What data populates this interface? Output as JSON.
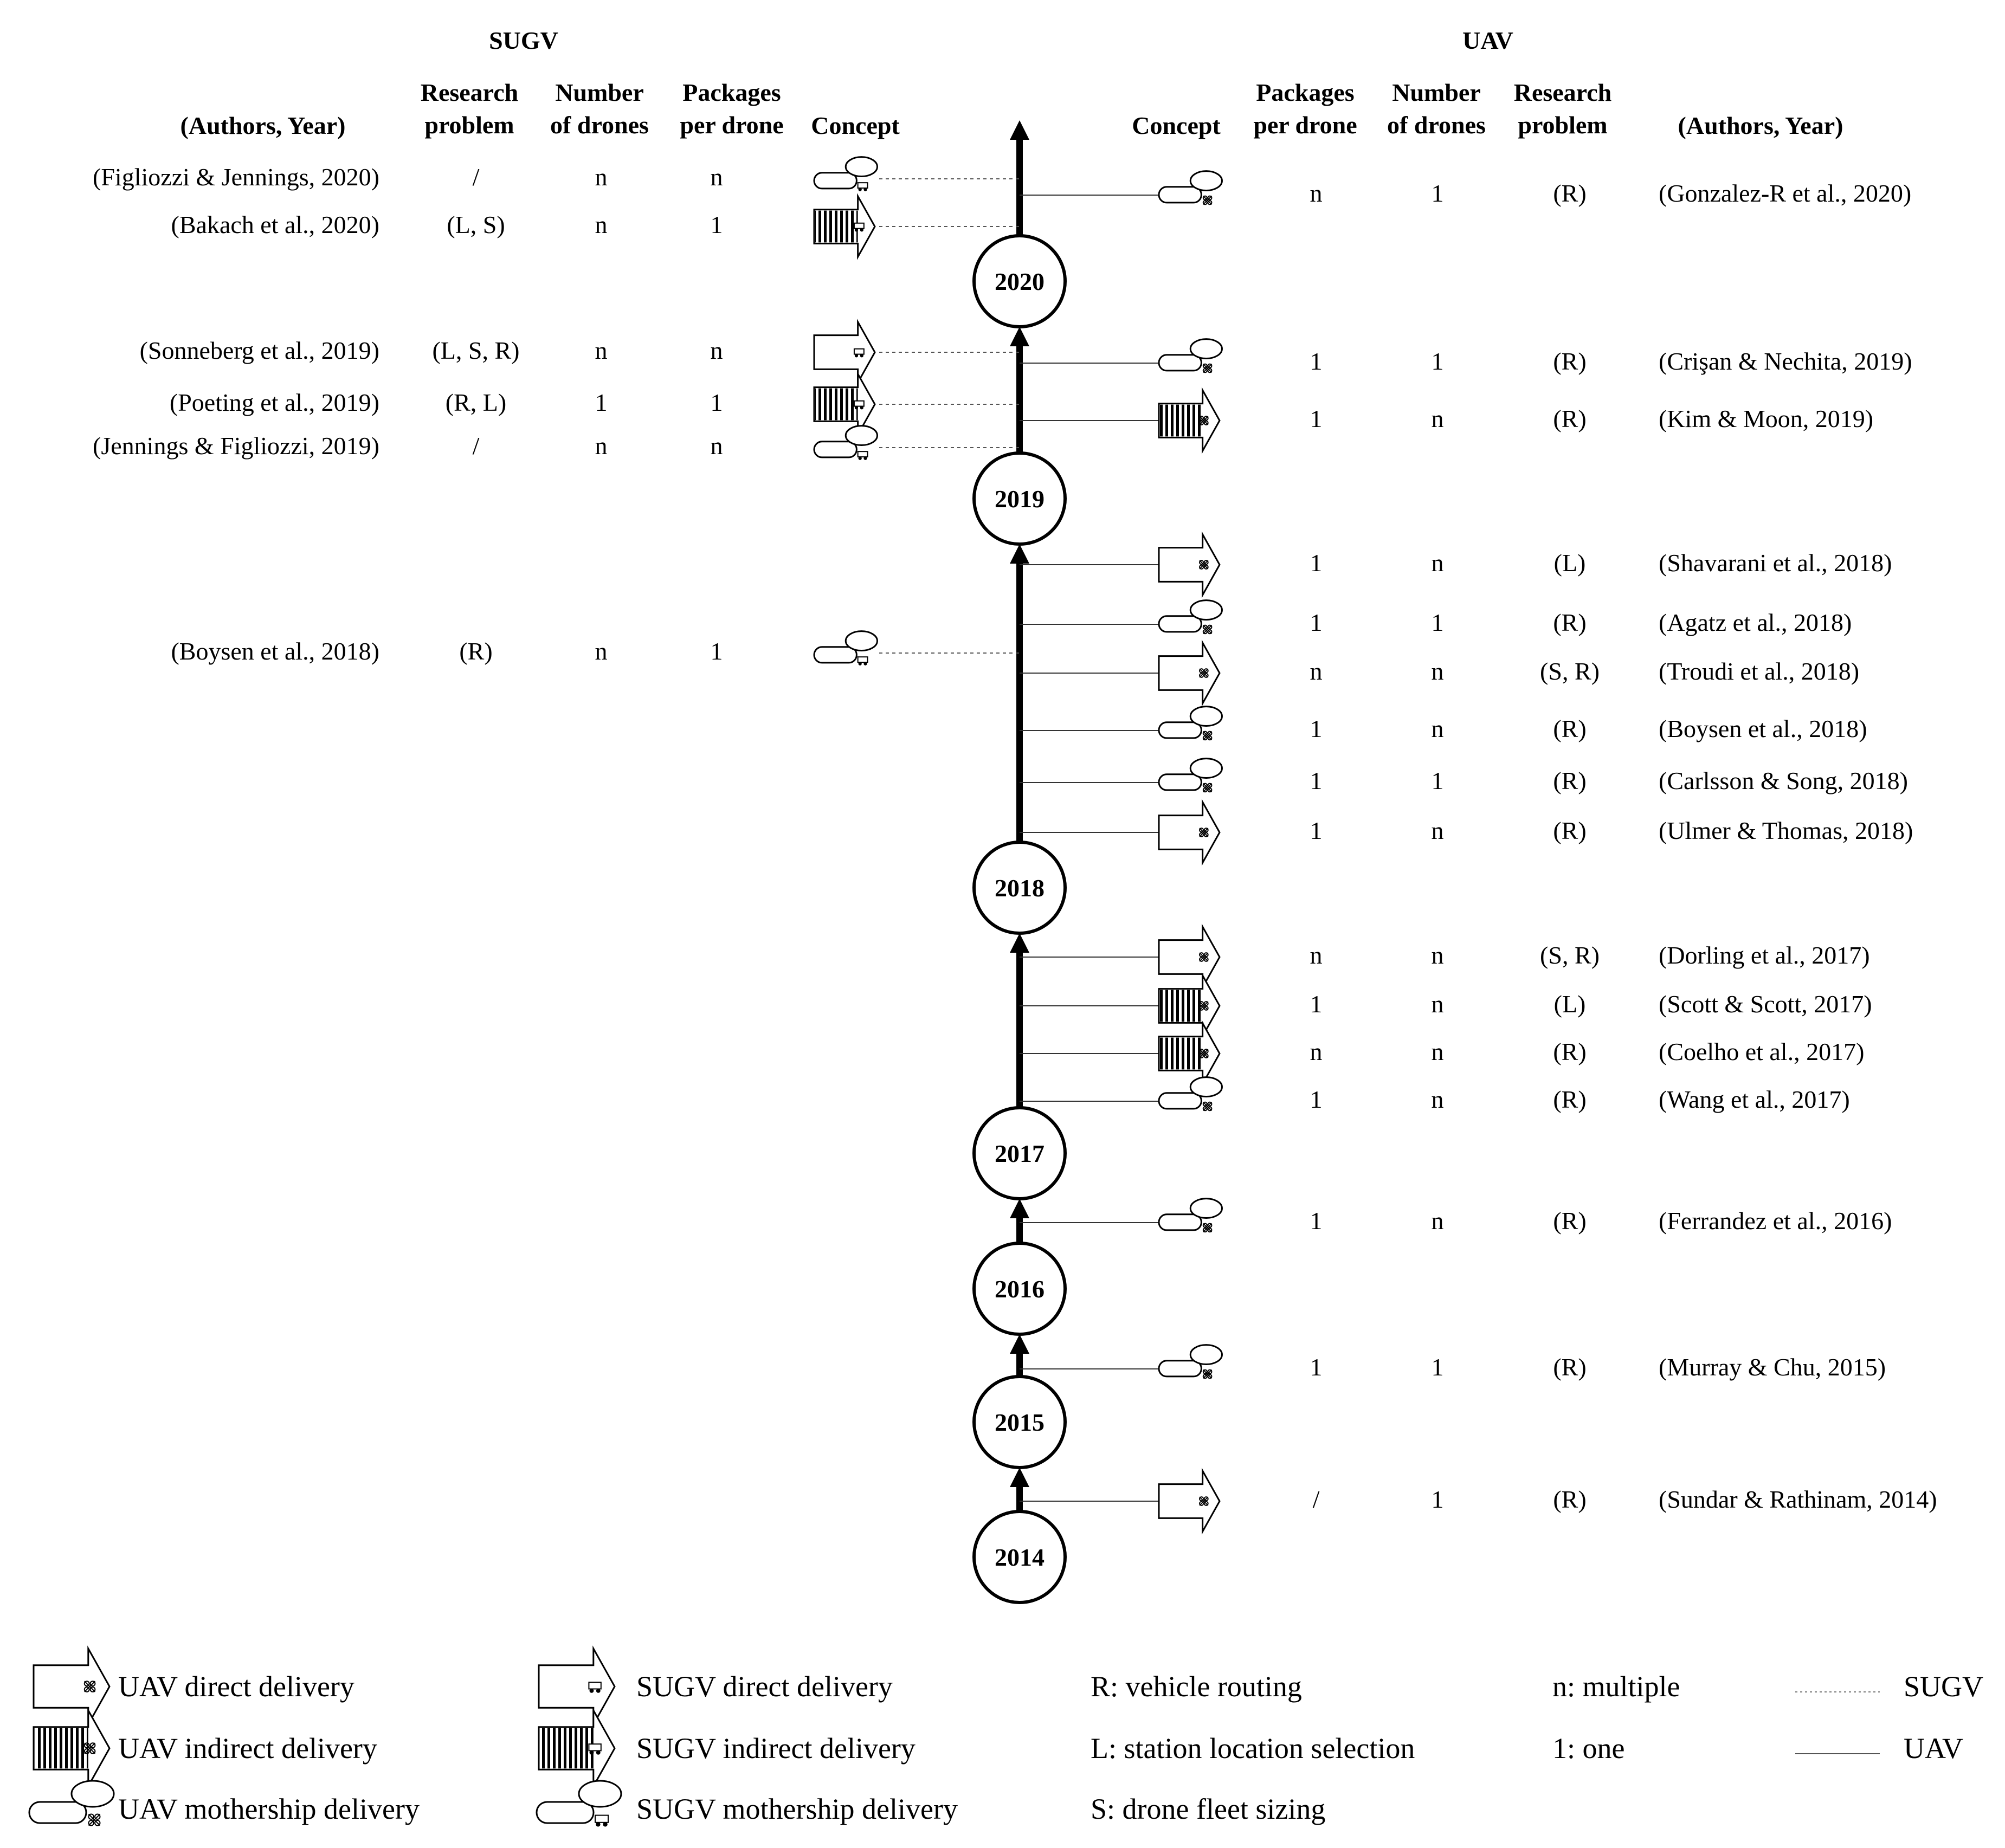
{
  "headers": {
    "sugv_title": "SUGV",
    "uav_title": "UAV",
    "authors_year": "(Authors, Year)",
    "research_problem": [
      "Research",
      "problem"
    ],
    "number_of_drones": [
      "Number",
      "of drones"
    ],
    "packages_per_drone": [
      "Packages",
      "per drone"
    ],
    "concept": "Concept"
  },
  "years": [
    "2020",
    "2019",
    "2018",
    "2017",
    "2016",
    "2015",
    "2014"
  ],
  "sugv_rows": [
    {
      "author": "(Figliozzi & Jennings, 2020)",
      "problem": "/",
      "drones": "n",
      "packages": "n",
      "concept": "mothership"
    },
    {
      "author": "(Bakach et al., 2020)",
      "problem": "(L, S)",
      "drones": "n",
      "packages": "1",
      "concept": "indirect"
    },
    {
      "author": "(Sonneberg et al., 2019)",
      "problem": "(L, S, R)",
      "drones": "n",
      "packages": "n",
      "concept": "direct"
    },
    {
      "author": "(Poeting et al., 2019)",
      "problem": "(R, L)",
      "drones": "1",
      "packages": "1",
      "concept": "indirect"
    },
    {
      "author": "(Jennings & Figliozzi, 2019)",
      "problem": "/",
      "drones": "n",
      "packages": "n",
      "concept": "mothership"
    },
    {
      "author": "(Boysen et al., 2018)",
      "problem": "(R)",
      "drones": "n",
      "packages": "1",
      "concept": "mothership"
    }
  ],
  "uav_rows": [
    {
      "author": "(Gonzalez-R et al., 2020)",
      "packages": "n",
      "drones": "1",
      "problem": "(R)",
      "concept": "mothership"
    },
    {
      "author": "(Crişan & Nechita, 2019)",
      "packages": "1",
      "drones": "1",
      "problem": "(R)",
      "concept": "mothership"
    },
    {
      "author": "(Kim & Moon, 2019)",
      "packages": "1",
      "drones": "n",
      "problem": "(R)",
      "concept": "indirect"
    },
    {
      "author": "(Shavarani et al., 2018)",
      "packages": "1",
      "drones": "n",
      "problem": "(L)",
      "concept": "direct"
    },
    {
      "author": "(Agatz et al., 2018)",
      "packages": "1",
      "drones": "1",
      "problem": "(R)",
      "concept": "mothership"
    },
    {
      "author": "(Troudi et al., 2018)",
      "packages": "n",
      "drones": "n",
      "problem": "(S, R)",
      "concept": "direct"
    },
    {
      "author": "(Boysen et al., 2018)",
      "packages": "1",
      "drones": "n",
      "problem": "(R)",
      "concept": "mothership"
    },
    {
      "author": "(Carlsson & Song, 2018)",
      "packages": "1",
      "drones": "1",
      "problem": "(R)",
      "concept": "mothership"
    },
    {
      "author": "(Ulmer & Thomas, 2018)",
      "packages": "1",
      "drones": "n",
      "problem": "(R)",
      "concept": "direct"
    },
    {
      "author": "(Dorling et al., 2017)",
      "packages": "n",
      "drones": "n",
      "problem": "(S, R)",
      "concept": "direct"
    },
    {
      "author": "(Scott & Scott, 2017)",
      "packages": "1",
      "drones": "n",
      "problem": "(L)",
      "concept": "indirect"
    },
    {
      "author": "(Coelho et al., 2017)",
      "packages": "n",
      "drones": "n",
      "problem": "(R)",
      "concept": "indirect"
    },
    {
      "author": "(Wang et al., 2017)",
      "packages": "1",
      "drones": "n",
      "problem": "(R)",
      "concept": "mothership"
    },
    {
      "author": "(Ferrandez et al., 2016)",
      "packages": "1",
      "drones": "n",
      "problem": "(R)",
      "concept": "mothership"
    },
    {
      "author": "(Murray & Chu, 2015)",
      "packages": "1",
      "drones": "1",
      "problem": "(R)",
      "concept": "mothership"
    },
    {
      "author": "(Sundar & Rathinam, 2014)",
      "packages": "/",
      "drones": "1",
      "problem": "(R)",
      "concept": "direct"
    }
  ],
  "legend": {
    "uav_direct": "UAV direct delivery",
    "uav_indirect": "UAV indirect delivery",
    "uav_mothership": "UAV mothership delivery",
    "sugv_direct": "SUGV direct delivery",
    "sugv_indirect": "SUGV indirect delivery",
    "sugv_mothership": "SUGV mothership delivery",
    "r_def": "R: vehicle routing",
    "l_def": "L: station location selection",
    "s_def": "S: drone fleet sizing",
    "n_def": "n: multiple",
    "one_def": "1: one",
    "line_sugv": "SUGV",
    "line_uav": "UAV"
  }
}
